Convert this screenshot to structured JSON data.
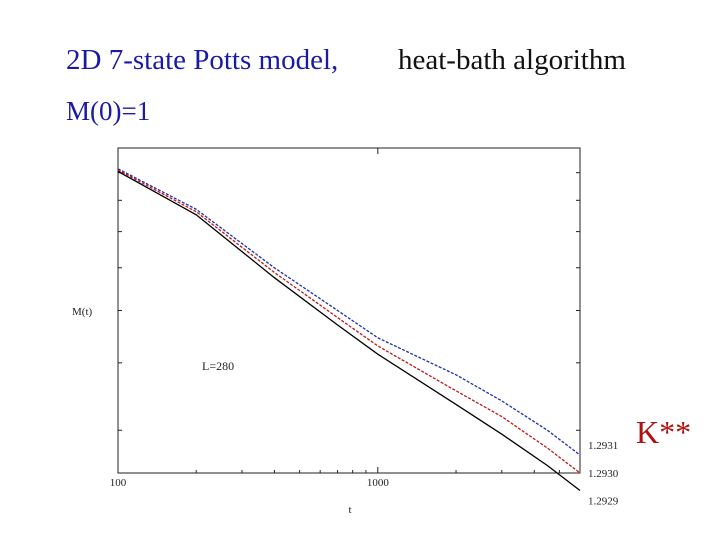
{
  "header": {
    "title": "2D 7-state Potts model,",
    "title_right": "heat-bath algorithm",
    "subtitle": "M(0)=1"
  },
  "side_label": "K**",
  "colors": {
    "title": "#1a1aa6",
    "k_label": "#b01010",
    "series_1_2931": "#1f2fb0",
    "series_1_2930": "#c01818",
    "series_1_2929": "#000000"
  },
  "chart_data": {
    "type": "line",
    "title": "",
    "xlabel": "t",
    "ylabel": "M(t)",
    "x_scale": "log",
    "y_scale": "log",
    "xlim": [
      100,
      6000
    ],
    "xticks": [
      100,
      1000
    ],
    "xtick_labels": [
      "100",
      "1000"
    ],
    "ylim": [
      0.25,
      1.0
    ],
    "annotation": "L=280",
    "grid": false,
    "series": [
      {
        "name": "1.2931",
        "color": "#1f2fb0",
        "points": [
          [
            100,
            0.915
          ],
          [
            200,
            0.77
          ],
          [
            400,
            0.6
          ],
          [
            700,
            0.5
          ],
          [
            1000,
            0.445
          ],
          [
            2000,
            0.38
          ],
          [
            3000,
            0.34
          ],
          [
            4500,
            0.3
          ],
          [
            6000,
            0.27
          ]
        ]
      },
      {
        "name": "1.2930",
        "color": "#c01818",
        "points": [
          [
            100,
            0.91
          ],
          [
            200,
            0.762
          ],
          [
            400,
            0.588
          ],
          [
            700,
            0.485
          ],
          [
            1000,
            0.43
          ],
          [
            2000,
            0.355
          ],
          [
            3000,
            0.318
          ],
          [
            4500,
            0.278
          ],
          [
            6000,
            0.25
          ]
        ]
      },
      {
        "name": "1.2929",
        "color": "#000000",
        "points": [
          [
            100,
            0.905
          ],
          [
            200,
            0.752
          ],
          [
            400,
            0.575
          ],
          [
            700,
            0.47
          ],
          [
            1000,
            0.415
          ],
          [
            2000,
            0.335
          ],
          [
            3000,
            0.295
          ],
          [
            4500,
            0.258
          ],
          [
            6000,
            0.232
          ]
        ]
      }
    ]
  }
}
